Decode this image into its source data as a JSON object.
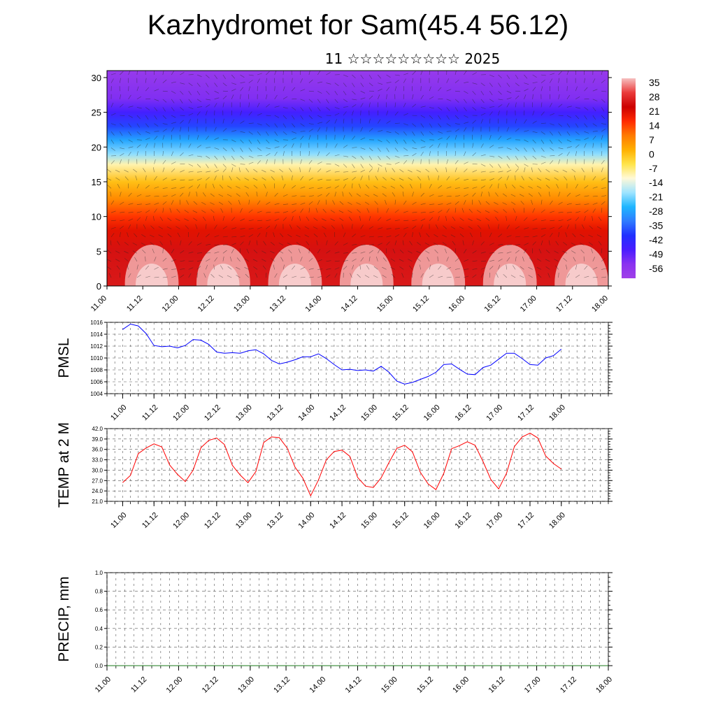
{
  "title": "Kazhydromet for Sam(45.4 56.12)",
  "subtitle": "11 ☆☆☆☆☆☆☆☆☆ 2025",
  "chart_data": [
    {
      "type": "heatmap",
      "name": "cross-section",
      "x_ticks": [
        "11.00",
        "11.12",
        "12.00",
        "12.12",
        "13.00",
        "13.12",
        "14.00",
        "14.12",
        "15.00",
        "15.12",
        "16.00",
        "16.12",
        "17.00",
        "17.12",
        "18.00"
      ],
      "y_ticks": [
        0,
        5,
        10,
        15,
        20,
        25,
        30
      ],
      "ylim": [
        0,
        31
      ],
      "colorbar": {
        "labels": [
          "35",
          "28",
          "21",
          "14",
          "7",
          "0",
          "-7",
          "-14",
          "-21",
          "-28",
          "-35",
          "-42",
          "-49",
          "-56"
        ],
        "stops": [
          {
            "v": 35,
            "color": "#f6c0c0"
          },
          {
            "v": 28,
            "color": "#ea3b3b"
          },
          {
            "v": 21,
            "color": "#cc0000"
          },
          {
            "v": 14,
            "color": "#ff2a00"
          },
          {
            "v": 7,
            "color": "#ff7a00"
          },
          {
            "v": 0,
            "color": "#ffb000"
          },
          {
            "v": -7,
            "color": "#ffe44a"
          },
          {
            "v": -14,
            "color": "#fff9d8"
          },
          {
            "v": -21,
            "color": "#9fe4ff"
          },
          {
            "v": -28,
            "color": "#1fb6ff"
          },
          {
            "v": -35,
            "color": "#2f7bff"
          },
          {
            "v": -42,
            "color": "#2030ff"
          },
          {
            "v": -49,
            "color": "#4a1cff"
          },
          {
            "v": -56,
            "color": "#8a32f0"
          },
          {
            "v": -63,
            "color": "#a040e8"
          }
        ]
      },
      "profile": [
        {
          "h": 0,
          "t": 24
        },
        {
          "h": 5,
          "t": 23
        },
        {
          "h": 8,
          "t": 18
        },
        {
          "h": 10,
          "t": 13
        },
        {
          "h": 12.5,
          "t": 5
        },
        {
          "h": 15,
          "t": -2
        },
        {
          "h": 17.5,
          "t": -12
        },
        {
          "h": 19,
          "t": -22
        },
        {
          "h": 21,
          "t": -30
        },
        {
          "h": 23,
          "t": -40
        },
        {
          "h": 25,
          "t": -48
        },
        {
          "h": 27,
          "t": -55
        },
        {
          "h": 31,
          "t": -60
        }
      ]
    },
    {
      "type": "line",
      "name": "PMSL",
      "ylabel": "PMSL",
      "ylim": [
        1004,
        1016
      ],
      "y_ticks": [
        "1016",
        "1014",
        "1012",
        "1010",
        "1008",
        "1006",
        "1004"
      ],
      "x_ticks": [
        "11.00",
        "11.12",
        "12.00",
        "12.12",
        "13.00",
        "13.12",
        "14.00",
        "14.12",
        "15.00",
        "15.12",
        "16.00",
        "16.12",
        "17.00",
        "17.12",
        "18.00"
      ],
      "color": "#0000ff",
      "x": [
        0,
        3,
        6,
        9,
        12,
        15,
        18,
        21,
        24,
        27,
        30,
        33,
        36,
        39,
        42,
        45,
        48,
        51,
        54,
        57,
        60,
        63,
        66,
        69,
        72,
        75,
        78,
        81,
        84,
        87,
        90,
        93,
        96,
        99,
        102,
        105,
        108,
        111,
        114,
        117,
        120,
        123,
        126,
        129,
        132,
        135,
        138,
        141,
        144,
        147,
        150,
        153,
        156,
        159,
        162,
        165,
        168
      ],
      "values": [
        1014.8,
        1015.7,
        1015.4,
        1014.1,
        1012.1,
        1011.9,
        1012.0,
        1011.7,
        1012.1,
        1013.1,
        1013.0,
        1012.3,
        1011.0,
        1010.8,
        1010.9,
        1010.8,
        1011.2,
        1011.4,
        1010.7,
        1009.6,
        1009.0,
        1009.3,
        1009.7,
        1010.2,
        1010.2,
        1010.7,
        1009.9,
        1008.9,
        1008.0,
        1008.1,
        1007.9,
        1008.0,
        1007.8,
        1008.6,
        1007.6,
        1006.1,
        1005.6,
        1005.9,
        1006.4,
        1006.9,
        1007.6,
        1008.9,
        1009.0,
        1008.1,
        1007.3,
        1007.2,
        1008.4,
        1008.8,
        1009.8,
        1010.8,
        1010.8,
        1009.9,
        1008.9,
        1008.8,
        1010.0,
        1010.4,
        1011.5
      ]
    },
    {
      "type": "line",
      "name": "TEMP at 2 M",
      "ylabel": "TEMP at 2 M",
      "ylim": [
        21,
        42
      ],
      "y_ticks": [
        "42.0",
        "39.0",
        "36.0",
        "33.0",
        "30.0",
        "27.0",
        "24.0",
        "21.0"
      ],
      "x_ticks": [
        "11.00",
        "11.12",
        "12.00",
        "12.12",
        "13.00",
        "13.12",
        "14.00",
        "14.12",
        "15.00",
        "15.12",
        "16.00",
        "16.12",
        "17.00",
        "17.12",
        "18.00"
      ],
      "color": "#ff0000",
      "x": [
        0,
        3,
        6,
        9,
        12,
        15,
        18,
        21,
        24,
        27,
        30,
        33,
        36,
        39,
        42,
        45,
        48,
        51,
        54,
        57,
        60,
        63,
        66,
        69,
        72,
        75,
        78,
        81,
        84,
        87,
        90,
        93,
        96,
        99,
        102,
        105,
        108,
        111,
        114,
        117,
        120,
        123,
        126,
        129,
        132,
        135,
        138,
        141,
        144,
        147,
        150,
        153,
        156,
        159,
        162,
        165,
        168
      ],
      "values": [
        26.4,
        28.5,
        34.8,
        36.4,
        37.6,
        36.7,
        31.5,
        28.8,
        26.7,
        30.0,
        36.5,
        38.6,
        39.3,
        37.4,
        31.4,
        28.6,
        26.4,
        29.6,
        38.0,
        39.6,
        39.4,
        36.4,
        30.9,
        27.7,
        22.6,
        27.2,
        33.0,
        35.4,
        35.8,
        34.0,
        27.9,
        25.4,
        25.0,
        27.8,
        32.2,
        36.3,
        37.2,
        35.3,
        29.4,
        26.0,
        24.4,
        29.1,
        36.2,
        37.1,
        38.2,
        37.2,
        32.5,
        27.3,
        24.6,
        29.1,
        36.8,
        39.6,
        40.7,
        39.3,
        34.1,
        31.9,
        30.3
      ]
    },
    {
      "type": "line",
      "name": "PRECIP, mm",
      "ylabel": "PRECIP, mm",
      "ylim": [
        0,
        1
      ],
      "y_ticks": [
        "1.0",
        "0.8",
        "0.6",
        "0.4",
        "0.2",
        "0.0"
      ],
      "x_ticks": [
        "11.00",
        "11.12",
        "12.00",
        "12.12",
        "13.00",
        "13.12",
        "14.00",
        "14.12",
        "15.00",
        "15.12",
        "16.00",
        "16.12",
        "17.00",
        "17.12",
        "18.00"
      ],
      "color": "#1a7a1a",
      "x": [
        0,
        168
      ],
      "values": [
        0,
        0
      ]
    }
  ]
}
